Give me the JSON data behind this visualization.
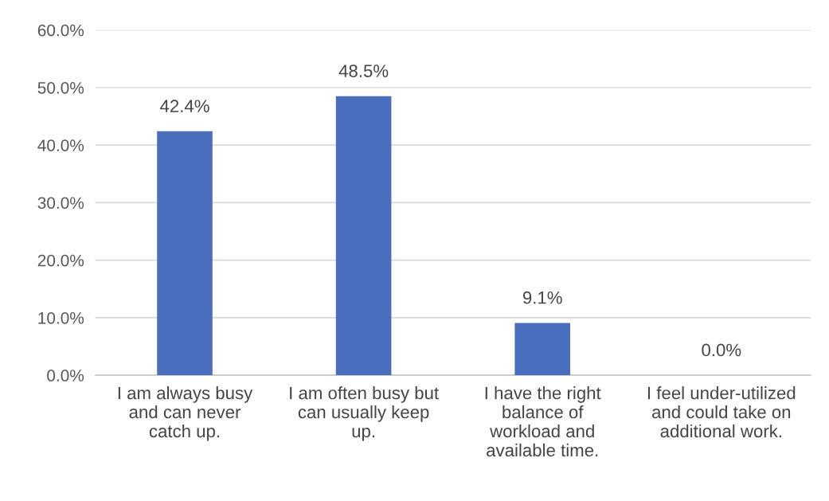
{
  "chart_data": {
    "type": "bar",
    "categories": [
      "I am always busy\nand can never\ncatch up.",
      "I am often busy but\ncan usually keep\nup.",
      "I have the right\nbalance of\nworkload and\navailable time.",
      "I feel under-utilized\nand could take on\nadditional work."
    ],
    "values": [
      42.4,
      48.5,
      9.1,
      0.0
    ],
    "value_labels": [
      "42.4%",
      "48.5%",
      "9.1%",
      "0.0%"
    ],
    "color": "#4a6ebe",
    "ylim": [
      0,
      60
    ],
    "yticks": [
      {
        "value": 0,
        "label": "0.0%"
      },
      {
        "value": 10,
        "label": "10.0%"
      },
      {
        "value": 20,
        "label": "20.0%"
      },
      {
        "value": 30,
        "label": "30.0%"
      },
      {
        "value": 40,
        "label": "40.0%"
      },
      {
        "value": 50,
        "label": "50.0%"
      },
      {
        "value": 60,
        "label": "60.0%"
      }
    ],
    "grid": "y",
    "legend": false
  }
}
